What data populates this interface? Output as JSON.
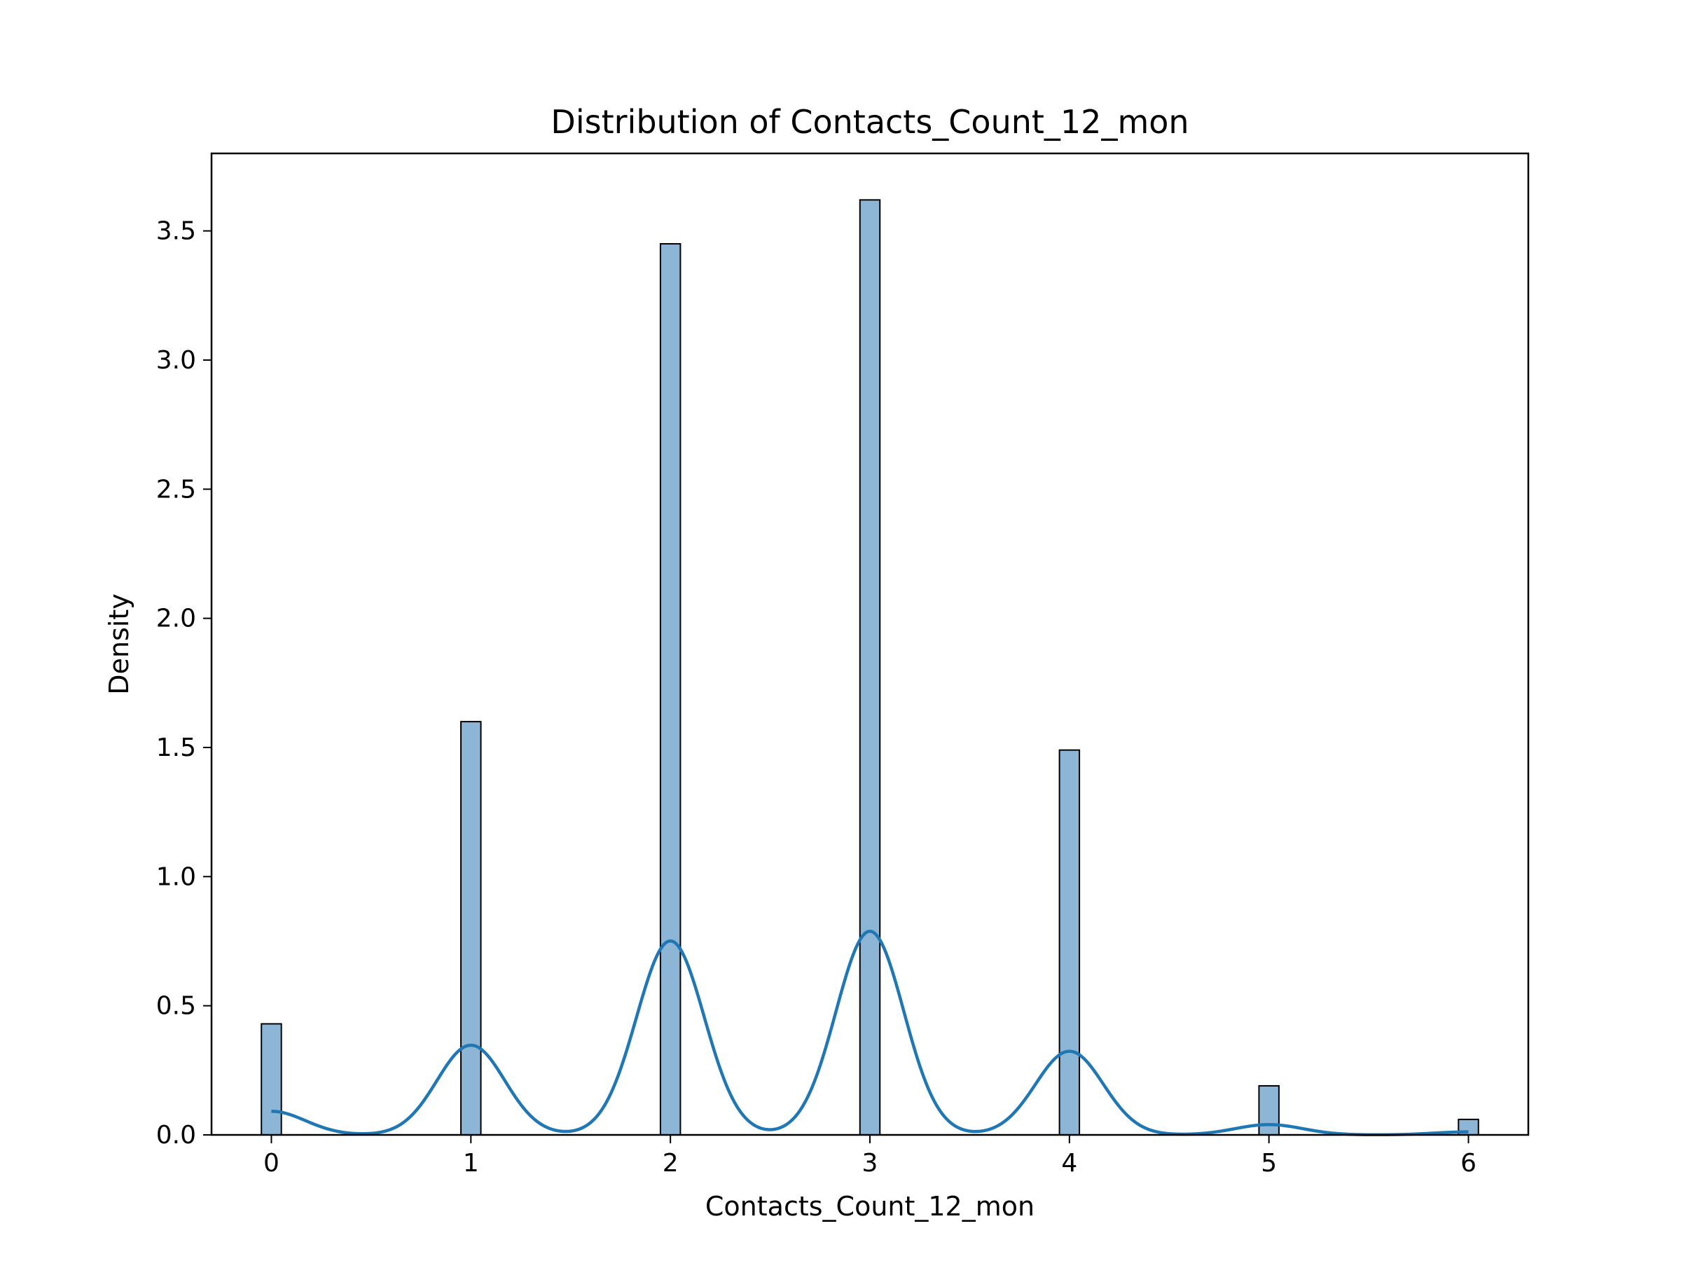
{
  "chart_data": {
    "type": "bar",
    "title": "Distribution of Contacts_Count_12_mon",
    "xlabel": "Contacts_Count_12_mon",
    "ylabel": "Density",
    "xlim": [
      -0.3,
      6.3
    ],
    "ylim": [
      0,
      3.8
    ],
    "xticks": [
      0,
      1,
      2,
      3,
      4,
      5,
      6
    ],
    "yticks": [
      0.0,
      0.5,
      1.0,
      1.5,
      2.0,
      2.5,
      3.0,
      3.5
    ],
    "ytick_labels": [
      "0.0",
      "0.5",
      "1.0",
      "1.5",
      "2.0",
      "2.5",
      "3.0",
      "3.5"
    ],
    "bin_width": 0.1,
    "bars": [
      {
        "x": 0,
        "value": 0.43
      },
      {
        "x": 1,
        "value": 1.6
      },
      {
        "x": 2,
        "value": 3.45
      },
      {
        "x": 3,
        "value": 3.62
      },
      {
        "x": 4,
        "value": 1.49
      },
      {
        "x": 5,
        "value": 0.19
      },
      {
        "x": 6,
        "value": 0.06
      }
    ],
    "kde": {
      "bandwidth": 0.17,
      "weights": [
        0.039,
        0.148,
        0.32,
        0.336,
        0.138,
        0.017,
        0.005
      ],
      "centers": [
        0,
        1,
        2,
        3,
        4,
        5,
        6
      ],
      "x_range": [
        0,
        6
      ]
    },
    "colors": {
      "bar_fill": "#8db5d6",
      "bar_edge": "#000000",
      "kde_line": "#1f77b4"
    },
    "grid": false,
    "legend": "none"
  }
}
